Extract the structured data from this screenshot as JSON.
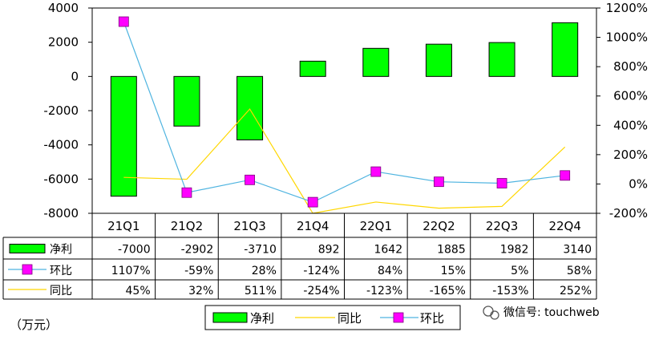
{
  "chart_data": {
    "type": "bar",
    "categories": [
      "21Q1",
      "21Q2",
      "21Q3",
      "21Q4",
      "22Q1",
      "22Q2",
      "22Q3",
      "22Q4"
    ],
    "series": [
      {
        "name": "净利",
        "type": "bar",
        "axis": "left",
        "color": "#00ff00",
        "values": [
          -7000,
          -2902,
          -3710,
          892,
          1642,
          1885,
          1982,
          3140
        ],
        "labels": [
          "-7000",
          "-2902",
          "-3710",
          "892",
          "1642",
          "1885",
          "1982",
          "3140"
        ]
      },
      {
        "name": "环比",
        "type": "line",
        "axis": "right",
        "color": "#4fb4e0",
        "marker_color": "#ff00ff",
        "values": [
          1107,
          -59,
          28,
          -124,
          84,
          15,
          5,
          58
        ],
        "labels": [
          "1107%",
          "-59%",
          "28%",
          "-124%",
          "84%",
          "15%",
          "5%",
          "58%"
        ]
      },
      {
        "name": "同比",
        "type": "line",
        "axis": "right",
        "color": "#ffd700",
        "values": [
          45,
          32,
          511,
          -254,
          -123,
          -165,
          -153,
          252
        ],
        "labels": [
          "45%",
          "32%",
          "511%",
          "-254%",
          "-123%",
          "-165%",
          "-153%",
          "252%"
        ]
      }
    ],
    "y_left": {
      "ticks": [
        "4000",
        "2000",
        "0",
        "-2000",
        "-4000",
        "-6000",
        "-8000"
      ],
      "ylim": [
        -8000,
        4000
      ]
    },
    "y_right": {
      "ticks": [
        "1200%",
        "1000%",
        "800%",
        "600%",
        "400%",
        "200%",
        "0%",
        "-200%"
      ],
      "ylim": [
        -200,
        1200
      ]
    },
    "table_rows": [
      "净利",
      "环比",
      "同比"
    ],
    "legend": {
      "entries": [
        "净利",
        "同比",
        "环比"
      ],
      "placement": "bottom-center"
    },
    "unit_label": "（万元）",
    "grid": false
  },
  "watermark": {
    "text": "微信号: touchweb",
    "icon": "wechat-icon"
  }
}
